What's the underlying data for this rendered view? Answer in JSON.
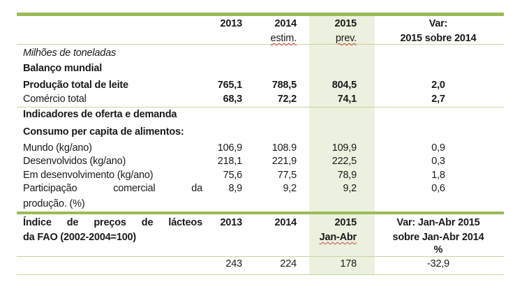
{
  "header": {
    "y2013": "2013",
    "y2014": "2014",
    "y2014_note": "estim.",
    "y2015": "2015",
    "y2015_note": "prev.",
    "var_line1": "Var:",
    "var_line2": "2015 sobre 2014"
  },
  "unit_note": "Milhões de toneladas",
  "sections": {
    "balanco": "Balanço mundial",
    "indicadores": "Indicadores de oferta e demanda",
    "consumo": "Consumo per capita de alimentos:"
  },
  "rows": [
    {
      "label": "Produção total de leite",
      "v2013": "765,1",
      "v2014": "788,5",
      "v2015": "804,5",
      "var": "2,0"
    },
    {
      "label": "Comércio total",
      "v2013": "68,3",
      "v2014": "72,2",
      "v2015": "74,1",
      "var": "2,7"
    },
    {
      "label": "Mundo (kg/ano)",
      "v2013": "106,9",
      "v2014": "108.9",
      "v2015": "109,9",
      "var": "0,9"
    },
    {
      "label": "Desenvolvidos (kg/ano)",
      "v2013": "218,1",
      "v2014": "221,9",
      "v2015": "222,5",
      "var": "0,3"
    },
    {
      "label": "Em desenvolvimento (kg/ano)",
      "v2013": "75,6",
      "v2014": "77,5",
      "v2015": "78,9",
      "var": "1,8"
    },
    {
      "label_w1": "Participação",
      "label_w2": "comercial",
      "label_w3": "da",
      "label_line2": "produção. (%)",
      "v2013": "8,9",
      "v2014": "9,2",
      "v2015": "9,2",
      "var": "0,6"
    }
  ],
  "index": {
    "title_w1": "Índice",
    "title_w2": "de",
    "title_w3": "preços",
    "title_w4": "de",
    "title_w5": "lácteos",
    "title_line2": "da FAO (2002-2004=100)",
    "h2013": "2013",
    "h2014": "2014",
    "h2015": "2015",
    "h2015_note": "Jan-Abr",
    "var_line1": "Var: Jan-Abr 2015",
    "var_line2": "sobre Jan-Abr 2014",
    "var_line3": "%",
    "v2013": "243",
    "v2014": "224",
    "v2015": "178",
    "var": "-32,9"
  }
}
